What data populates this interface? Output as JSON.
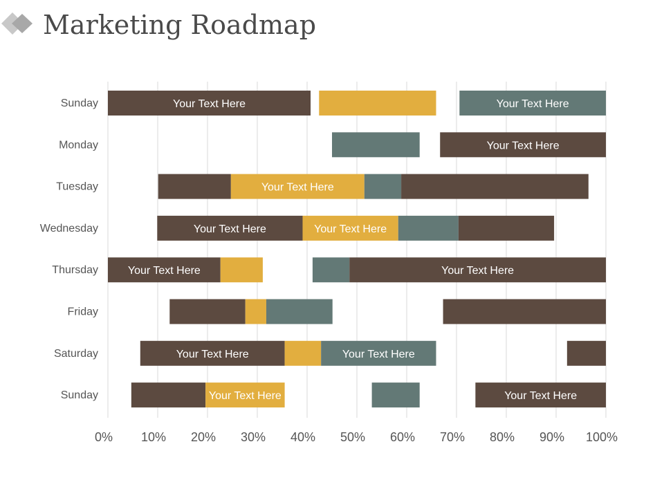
{
  "page": {
    "title": "Marketing Roadmap"
  },
  "colors": {
    "brown": "#5c4a40",
    "gold": "#e2ae3f",
    "slate": "#637976",
    "grid": "#d9d9d9",
    "axis_text": "#555555",
    "logo_light": "#c8c8c8",
    "logo_dark": "#a8a8a8"
  },
  "chart_data": {
    "type": "bar",
    "orientation": "horizontal",
    "stacked": true,
    "title": "Marketing Roadmap",
    "xlabel": "",
    "ylabel": "",
    "xlim": [
      0,
      100
    ],
    "x_tick_labels": [
      "0%",
      "10%",
      "20%",
      "30%",
      "40%",
      "50%",
      "60%",
      "70%",
      "80%",
      "90%",
      "100%"
    ],
    "grid": "vertical",
    "categories": [
      "Sunday",
      "Monday",
      "Tuesday",
      "Wednesday",
      "Thursday",
      "Friday",
      "Saturday",
      "Sunday"
    ],
    "rows": [
      {
        "category": "Sunday",
        "segments": [
          {
            "start": 0,
            "end": 40.7,
            "color": "brown",
            "label": "Your Text Here"
          },
          {
            "start": 42.4,
            "end": 65.9,
            "color": "gold",
            "label": ""
          },
          {
            "start": 70.6,
            "end": 100,
            "color": "slate",
            "label": "Your Text Here"
          }
        ]
      },
      {
        "category": "Monday",
        "segments": [
          {
            "start": 45.0,
            "end": 62.6,
            "color": "slate",
            "label": ""
          },
          {
            "start": 66.7,
            "end": 100,
            "color": "brown",
            "label": "Your Text Here"
          }
        ]
      },
      {
        "category": "Tuesday",
        "segments": [
          {
            "start": 10.1,
            "end": 24.7,
            "color": "brown",
            "label": ""
          },
          {
            "start": 24.7,
            "end": 51.5,
            "color": "gold",
            "label": "Your Text Here"
          },
          {
            "start": 51.5,
            "end": 58.9,
            "color": "slate",
            "label": ""
          },
          {
            "start": 58.9,
            "end": 96.5,
            "color": "brown",
            "label": ""
          }
        ]
      },
      {
        "category": "Wednesday",
        "segments": [
          {
            "start": 9.9,
            "end": 39.1,
            "color": "brown",
            "label": "Your Text Here"
          },
          {
            "start": 39.1,
            "end": 58.3,
            "color": "gold",
            "label": "Your Text Here"
          },
          {
            "start": 58.3,
            "end": 70.4,
            "color": "slate",
            "label": ""
          },
          {
            "start": 70.4,
            "end": 89.6,
            "color": "brown",
            "label": ""
          }
        ]
      },
      {
        "category": "Thursday",
        "segments": [
          {
            "start": 0,
            "end": 22.6,
            "color": "brown",
            "label": "Your Text Here"
          },
          {
            "start": 22.6,
            "end": 31.1,
            "color": "gold",
            "label": ""
          },
          {
            "start": 41.1,
            "end": 48.5,
            "color": "slate",
            "label": ""
          },
          {
            "start": 48.5,
            "end": 100,
            "color": "brown",
            "label": "Your Text Here"
          }
        ]
      },
      {
        "category": "Friday",
        "segments": [
          {
            "start": 12.4,
            "end": 27.6,
            "color": "brown",
            "label": ""
          },
          {
            "start": 27.6,
            "end": 31.8,
            "color": "gold",
            "label": ""
          },
          {
            "start": 31.8,
            "end": 45.1,
            "color": "slate",
            "label": ""
          },
          {
            "start": 67.3,
            "end": 100,
            "color": "brown",
            "label": ""
          }
        ]
      },
      {
        "category": "Saturday",
        "segments": [
          {
            "start": 6.5,
            "end": 35.5,
            "color": "brown",
            "label": "Your Text Here"
          },
          {
            "start": 35.5,
            "end": 42.8,
            "color": "gold",
            "label": ""
          },
          {
            "start": 42.8,
            "end": 65.9,
            "color": "slate",
            "label": "Your Text Here"
          },
          {
            "start": 92.2,
            "end": 100,
            "color": "brown",
            "label": ""
          }
        ]
      },
      {
        "category": "Sunday",
        "segments": [
          {
            "start": 4.7,
            "end": 19.6,
            "color": "brown",
            "label": ""
          },
          {
            "start": 19.6,
            "end": 35.5,
            "color": "gold",
            "label": "Your Text Here"
          },
          {
            "start": 53.0,
            "end": 62.6,
            "color": "slate",
            "label": ""
          },
          {
            "start": 73.8,
            "end": 100,
            "color": "brown",
            "label": "Your Text Here"
          }
        ]
      }
    ]
  }
}
